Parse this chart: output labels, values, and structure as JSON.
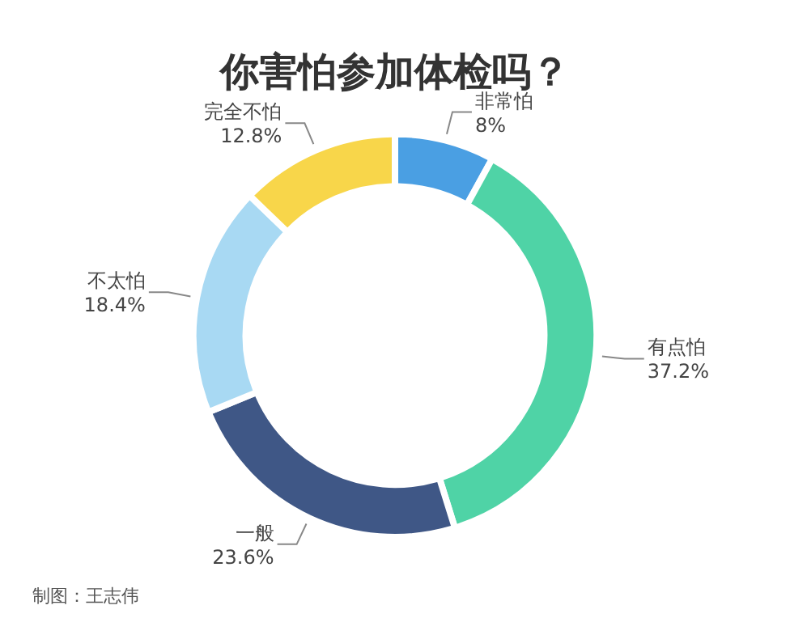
{
  "chart_data": {
    "type": "donut",
    "title": "你害怕参加体检吗？",
    "categories": [
      "非常怕",
      "有点怕",
      "一般",
      "不太怕",
      "完全不怕"
    ],
    "values": [
      8,
      37.2,
      23.6,
      18.4,
      12.8
    ],
    "value_labels": [
      "8%",
      "37.2%",
      "23.6%",
      "18.4%",
      "12.8%"
    ],
    "colors": [
      "#4a9fe3",
      "#4fd3a6",
      "#3f5786",
      "#a8d9f3",
      "#f8d64a"
    ],
    "legend": false,
    "annotations": [
      "制图：王志伟"
    ]
  }
}
